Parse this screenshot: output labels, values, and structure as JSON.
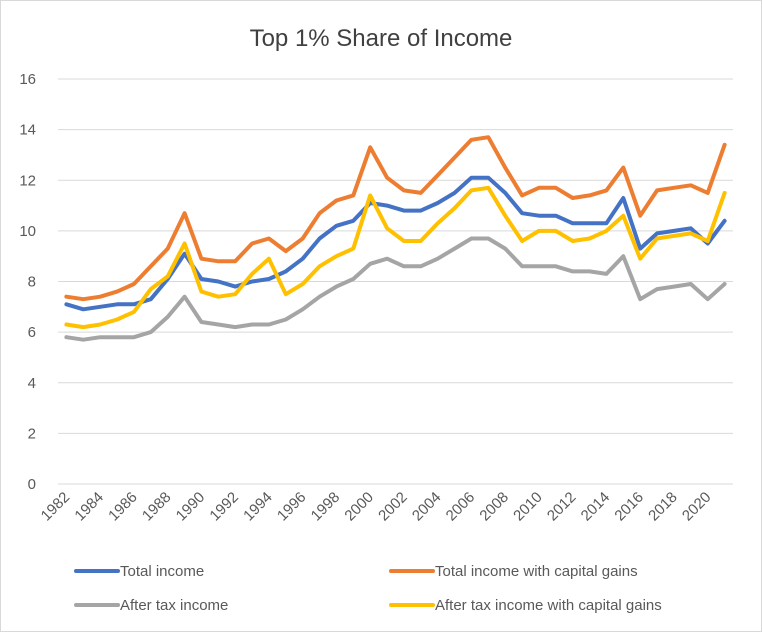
{
  "chart_data": {
    "type": "line",
    "title": "Top 1% Share of Income",
    "xlabel": "",
    "ylabel": "",
    "ylim": [
      0,
      16
    ],
    "yticks": [
      0,
      2,
      4,
      6,
      8,
      10,
      12,
      14,
      16
    ],
    "x": [
      1982,
      1983,
      1984,
      1985,
      1986,
      1987,
      1988,
      1989,
      1990,
      1991,
      1992,
      1993,
      1994,
      1995,
      1996,
      1997,
      1998,
      1999,
      2000,
      2001,
      2002,
      2003,
      2004,
      2005,
      2006,
      2007,
      2008,
      2009,
      2010,
      2011,
      2012,
      2013,
      2014,
      2015,
      2016,
      2017,
      2018,
      2019,
      2020,
      2021
    ],
    "xtick_labels": [
      "1982",
      "1984",
      "1986",
      "1988",
      "1990",
      "1992",
      "1994",
      "1996",
      "1998",
      "2000",
      "2002",
      "2004",
      "2006",
      "2008",
      "2010",
      "2012",
      "2014",
      "2016",
      "2018",
      "2020"
    ],
    "grid": true,
    "legend_position": "bottom",
    "series": [
      {
        "name": "Total income",
        "color": "#4472C4",
        "values": [
          7.1,
          6.9,
          7.0,
          7.1,
          7.1,
          7.3,
          8.1,
          9.1,
          8.1,
          8.0,
          7.8,
          8.0,
          8.1,
          8.4,
          8.9,
          9.7,
          10.2,
          10.4,
          11.1,
          11.0,
          10.8,
          10.8,
          11.1,
          11.5,
          12.1,
          12.1,
          11.5,
          10.7,
          10.6,
          10.6,
          10.3,
          10.3,
          10.3,
          11.3,
          9.3,
          9.9,
          10.0,
          10.1,
          9.5,
          10.4
        ]
      },
      {
        "name": "Total income with capital gains",
        "color": "#ED7D31",
        "values": [
          7.4,
          7.3,
          7.4,
          7.6,
          7.9,
          8.6,
          9.3,
          10.7,
          8.9,
          8.8,
          8.8,
          9.5,
          9.7,
          9.2,
          9.7,
          10.7,
          11.2,
          11.4,
          13.3,
          12.1,
          11.6,
          11.5,
          12.2,
          12.9,
          13.6,
          13.7,
          12.5,
          11.4,
          11.7,
          11.7,
          11.3,
          11.4,
          11.6,
          12.5,
          10.6,
          11.6,
          11.7,
          11.8,
          11.5,
          13.4
        ]
      },
      {
        "name": "After tax income",
        "color": "#A5A5A5",
        "values": [
          5.8,
          5.7,
          5.8,
          5.8,
          5.8,
          6.0,
          6.6,
          7.4,
          6.4,
          6.3,
          6.2,
          6.3,
          6.3,
          6.5,
          6.9,
          7.4,
          7.8,
          8.1,
          8.7,
          8.9,
          8.6,
          8.6,
          8.9,
          9.3,
          9.7,
          9.7,
          9.3,
          8.6,
          8.6,
          8.6,
          8.4,
          8.4,
          8.3,
          9.0,
          7.3,
          7.7,
          7.8,
          7.9,
          7.3,
          7.9
        ]
      },
      {
        "name": "After tax income with capital gains",
        "color": "#FFC000",
        "values": [
          6.3,
          6.2,
          6.3,
          6.5,
          6.8,
          7.7,
          8.2,
          9.5,
          7.6,
          7.4,
          7.5,
          8.3,
          8.9,
          7.5,
          7.9,
          8.6,
          9.0,
          9.3,
          11.4,
          10.1,
          9.6,
          9.6,
          10.3,
          10.9,
          11.6,
          11.7,
          10.6,
          9.6,
          10.0,
          10.0,
          9.6,
          9.7,
          10.0,
          10.6,
          8.9,
          9.7,
          9.8,
          9.9,
          9.6,
          11.5
        ]
      }
    ]
  }
}
